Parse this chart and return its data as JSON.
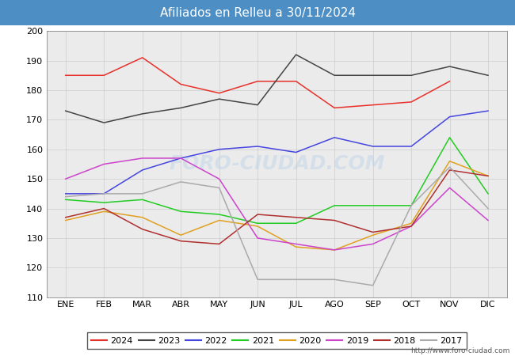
{
  "title": "Afiliados en Relleu a 30/11/2024",
  "title_bg_color": "#4d8fc4",
  "title_text_color": "white",
  "ylim": [
    110,
    200
  ],
  "yticks": [
    110,
    120,
    130,
    140,
    150,
    160,
    170,
    180,
    190,
    200
  ],
  "months": [
    "ENE",
    "FEB",
    "MAR",
    "ABR",
    "MAY",
    "JUN",
    "JUL",
    "AGO",
    "SEP",
    "OCT",
    "NOV",
    "DIC"
  ],
  "watermark": "FORO-CIUDAD.COM",
  "url": "http://www.foro-ciudad.com",
  "series": {
    "2024": {
      "color": "#e8302a",
      "data": [
        185,
        185,
        191,
        182,
        179,
        183,
        183,
        174,
        175,
        176,
        183,
        null
      ]
    },
    "2023": {
      "color": "#444444",
      "data": [
        173,
        169,
        172,
        174,
        177,
        175,
        192,
        185,
        185,
        185,
        188,
        185
      ]
    },
    "2022": {
      "color": "#4545e0",
      "data": [
        145,
        145,
        153,
        157,
        160,
        161,
        159,
        164,
        161,
        161,
        171,
        173
      ]
    },
    "2021": {
      "color": "#22cc22",
      "data": [
        143,
        142,
        143,
        139,
        138,
        135,
        135,
        141,
        141,
        141,
        164,
        145
      ]
    },
    "2020": {
      "color": "#e0a020",
      "data": [
        136,
        139,
        137,
        131,
        136,
        134,
        127,
        126,
        131,
        135,
        156,
        151
      ]
    },
    "2019": {
      "color": "#cc44cc",
      "data": [
        150,
        155,
        157,
        157,
        150,
        130,
        128,
        126,
        128,
        134,
        147,
        136
      ]
    },
    "2018": {
      "color": "#b03030",
      "data": [
        137,
        140,
        133,
        129,
        128,
        138,
        137,
        136,
        132,
        134,
        153,
        151
      ]
    },
    "2017": {
      "color": "#aaaaaa",
      "data": [
        144,
        145,
        145,
        149,
        147,
        116,
        116,
        116,
        114,
        141,
        154,
        140
      ]
    }
  }
}
